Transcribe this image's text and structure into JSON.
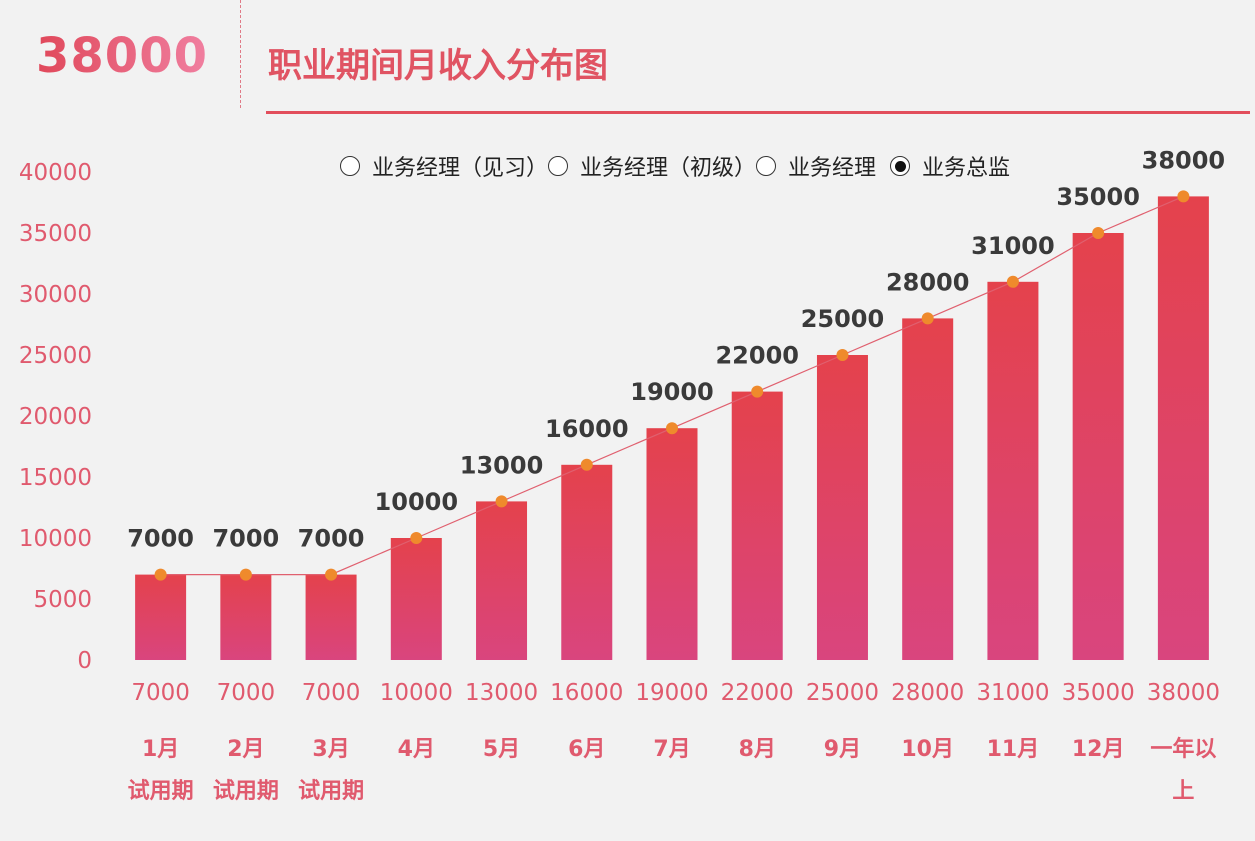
{
  "header": {
    "highlight_value": "38000",
    "title": "职业期间月收入分布图"
  },
  "legend": {
    "options": [
      {
        "label": "业务经理（见习）",
        "selected": false
      },
      {
        "label": "业务经理（初级）",
        "selected": false
      },
      {
        "label": "业务经理",
        "selected": false
      },
      {
        "label": "业务总监",
        "selected": true
      }
    ]
  },
  "colors": {
    "bar_top": "#e4424c",
    "bar_bottom": "#d9457e",
    "line": "#e0606f",
    "point": "#ef8a2c",
    "axis_text": "#e05a6e",
    "value_label": "#3a3a3a",
    "title": "#e05463"
  },
  "chart_data": {
    "type": "bar",
    "categories": [
      "1月",
      "2月",
      "3月",
      "4月",
      "5月",
      "6月",
      "7月",
      "8月",
      "9月",
      "10月",
      "11月",
      "12月",
      "一年以上"
    ],
    "category_line1": [
      "1月",
      "2月",
      "3月",
      "4月",
      "5月",
      "6月",
      "7月",
      "8月",
      "9月",
      "10月",
      "11月",
      "12月",
      "一年以"
    ],
    "category_line2": [
      "试用期",
      "试用期",
      "试用期",
      "",
      "",
      "",
      "",
      "",
      "",
      "",
      "",
      "",
      "上"
    ],
    "values": [
      7000,
      7000,
      7000,
      10000,
      13000,
      16000,
      19000,
      22000,
      25000,
      28000,
      31000,
      35000,
      38000
    ],
    "overlay_line": true,
    "data_labels_above": [
      "7000",
      "7000",
      "7000",
      "10000",
      "13000",
      "16000",
      "19000",
      "22000",
      "25000",
      "28000",
      "31000",
      "35000",
      "38000"
    ],
    "data_labels_below": [
      "7000",
      "7000",
      "7000",
      "10000",
      "13000",
      "16000",
      "19000",
      "22000",
      "25000",
      "28000",
      "31000",
      "35000",
      "38000"
    ],
    "yticks": [
      "0",
      "5000",
      "10000",
      "15000",
      "20000",
      "25000",
      "30000",
      "35000",
      "40000"
    ],
    "ylim": [
      0,
      40000
    ],
    "grid": false,
    "legend_position": "top"
  }
}
